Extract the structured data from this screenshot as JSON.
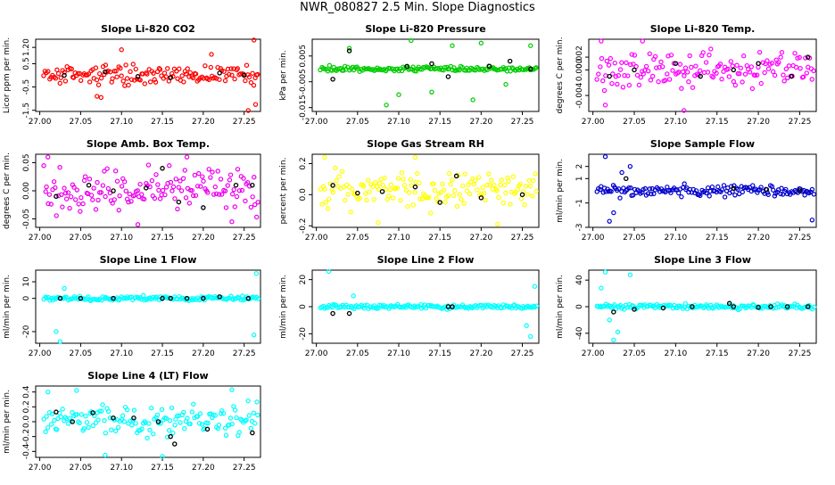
{
  "figure_title": "NWR_080827  2.5 Min. Slope Diagnostics",
  "chart_data": [
    {
      "id": "co2",
      "type": "scatter",
      "title": "Slope Li-820 CO2",
      "ylabel": "Licor ppm per min.",
      "color": "#ff0000",
      "xlim": [
        26.995,
        27.27
      ],
      "ylim": [
        -1.55,
        1.55
      ],
      "xticks": [
        "27.00",
        "27.05",
        "27.10",
        "27.15",
        "27.20",
        "27.25"
      ],
      "yticks": [
        {
          "v": -1.5,
          "label": "-1.5"
        },
        {
          "v": -0.5,
          "label": "-0.5"
        },
        {
          "v": 0.5,
          "label": "0.5"
        },
        {
          "v": 1.2,
          "label": "1.20"
        }
      ],
      "scatter": {
        "center": 0.05,
        "spread": 0.32
      },
      "outliers": [
        [
          27.07,
          -0.9
        ],
        [
          27.075,
          -0.95
        ],
        [
          27.1,
          1.1
        ],
        [
          27.21,
          0.9
        ],
        [
          27.255,
          -1.55
        ],
        [
          27.262,
          1.55
        ],
        [
          27.264,
          -1.25
        ]
      ],
      "black_points": [
        [
          27.03,
          0.0
        ],
        [
          27.08,
          0.15
        ],
        [
          27.12,
          -0.05
        ],
        [
          27.16,
          -0.1
        ],
        [
          27.22,
          0.1
        ],
        [
          27.25,
          0.0
        ]
      ]
    },
    {
      "id": "pressure",
      "type": "scatter",
      "title": "Slope Li-820 Pressure",
      "ylabel": "kPa per min.",
      "color": "#00cc00",
      "xlim": [
        26.995,
        27.27
      ],
      "ylim": [
        -0.0165,
        0.0115
      ],
      "xticks": [
        "27.00",
        "27.05",
        "27.10",
        "27.15",
        "27.20",
        "27.25"
      ],
      "yticks": [
        {
          "v": -0.015,
          "label": "-0.015"
        },
        {
          "v": -0.005,
          "label": "-0.005"
        },
        {
          "v": 0.005,
          "label": "0.005"
        }
      ],
      "scatter": {
        "center": 0.0,
        "spread": 0.0009
      },
      "outliers": [
        [
          27.04,
          0.008
        ],
        [
          27.085,
          -0.014
        ],
        [
          27.1,
          -0.01
        ],
        [
          27.115,
          0.011
        ],
        [
          27.14,
          -0.009
        ],
        [
          27.165,
          0.009
        ],
        [
          27.19,
          -0.012
        ],
        [
          27.2,
          0.01
        ],
        [
          27.23,
          -0.006
        ],
        [
          27.26,
          0.009
        ]
      ],
      "black_points": [
        [
          27.02,
          -0.004
        ],
        [
          27.04,
          0.007
        ],
        [
          27.11,
          0.001
        ],
        [
          27.14,
          0.002
        ],
        [
          27.16,
          -0.003
        ],
        [
          27.21,
          0.001
        ],
        [
          27.235,
          0.003
        ],
        [
          27.26,
          0.0
        ]
      ]
    },
    {
      "id": "temp",
      "type": "scatter",
      "title": "Slope Li-820 Temp.",
      "ylabel": "degrees C per min.",
      "color": "#ff00ff",
      "xlim": [
        26.995,
        27.27
      ],
      "ylim": [
        -0.0065,
        0.0048
      ],
      "xticks": [
        "27.00",
        "27.05",
        "27.10",
        "27.15",
        "27.20",
        "27.25"
      ],
      "yticks": [
        {
          "v": -0.004,
          "label": "-0.004"
        },
        {
          "v": 0.0,
          "label": "0.000"
        },
        {
          "v": 0.002,
          "label": "0.002"
        }
      ],
      "scatter": {
        "center": 0.0,
        "spread": 0.0022
      },
      "outliers": [
        [
          27.01,
          0.0045
        ],
        [
          27.015,
          -0.0055
        ],
        [
          27.06,
          0.0045
        ],
        [
          27.11,
          -0.0065
        ]
      ],
      "black_points": [
        [
          27.02,
          -0.001
        ],
        [
          27.05,
          0.0
        ],
        [
          27.1,
          0.001
        ],
        [
          27.13,
          -0.001
        ],
        [
          27.17,
          0.0
        ],
        [
          27.2,
          0.001
        ],
        [
          27.24,
          -0.001
        ],
        [
          27.26,
          0.002
        ]
      ]
    },
    {
      "id": "ambtemp",
      "type": "scatter",
      "title": "Slope Amb. Box Temp.",
      "ylabel": "degrees C per min.",
      "color": "#ee00ee",
      "xlim": [
        26.995,
        27.27
      ],
      "ylim": [
        -0.065,
        0.065
      ],
      "xticks": [
        "27.00",
        "27.05",
        "27.10",
        "27.15",
        "27.20",
        "27.25"
      ],
      "yticks": [
        {
          "v": -0.05,
          "label": "-0.05"
        },
        {
          "v": 0.0,
          "label": "0.00"
        },
        {
          "v": 0.05,
          "label": "0.05"
        }
      ],
      "scatter": {
        "center": 0.0,
        "spread": 0.03
      },
      "outliers": [
        [
          27.01,
          0.06
        ],
        [
          27.12,
          -0.06
        ],
        [
          27.18,
          0.06
        ],
        [
          27.235,
          -0.055
        ]
      ],
      "black_points": [
        [
          27.02,
          -0.01
        ],
        [
          27.06,
          0.01
        ],
        [
          27.09,
          0.0
        ],
        [
          27.13,
          0.005
        ],
        [
          27.15,
          0.04
        ],
        [
          27.17,
          -0.02
        ],
        [
          27.2,
          -0.03
        ],
        [
          27.24,
          0.01
        ],
        [
          27.26,
          0.01
        ]
      ]
    },
    {
      "id": "rh",
      "type": "scatter",
      "title": "Slope Gas Stream RH",
      "ylabel": "percent per min.",
      "color": "#ffff00",
      "xlim": [
        26.995,
        27.27
      ],
      "ylim": [
        -0.21,
        0.26
      ],
      "xticks": [
        "27.00",
        "27.05",
        "27.10",
        "27.15",
        "27.20",
        "27.25"
      ],
      "yticks": [
        {
          "v": -0.2,
          "label": "-0.2"
        },
        {
          "v": 0.0,
          "label": "0.0"
        },
        {
          "v": 0.2,
          "label": "0.2"
        }
      ],
      "scatter": {
        "center": 0.03,
        "spread": 0.09
      },
      "outliers": [
        [
          27.01,
          0.24
        ],
        [
          27.075,
          -0.18
        ],
        [
          27.12,
          0.24
        ],
        [
          27.22,
          -0.19
        ]
      ],
      "black_points": [
        [
          27.02,
          0.06
        ],
        [
          27.05,
          0.01
        ],
        [
          27.08,
          0.02
        ],
        [
          27.12,
          0.05
        ],
        [
          27.15,
          -0.05
        ],
        [
          27.17,
          0.12
        ],
        [
          27.2,
          -0.02
        ],
        [
          27.25,
          0.0
        ]
      ]
    },
    {
      "id": "sampleflow",
      "type": "scatter",
      "title": "Slope Sample Flow",
      "ylabel": "ml/min per min.",
      "color": "#0000cc",
      "xlim": [
        26.995,
        27.27
      ],
      "ylim": [
        -3.0,
        3.0
      ],
      "xticks": [
        "27.00",
        "27.05",
        "27.10",
        "27.15",
        "27.20",
        "27.25"
      ],
      "yticks": [
        {
          "v": -3,
          "label": "-3"
        },
        {
          "v": -1,
          "label": "-1"
        },
        {
          "v": 1,
          "label": "1"
        },
        {
          "v": 2,
          "label": "2"
        }
      ],
      "scatter": {
        "center": 0.0,
        "spread": 0.4
      },
      "outliers": [
        [
          27.015,
          2.8
        ],
        [
          27.02,
          -2.5
        ],
        [
          27.025,
          -1.8
        ],
        [
          27.035,
          1.5
        ],
        [
          27.045,
          2.0
        ],
        [
          27.265,
          -2.4
        ]
      ],
      "black_points": [
        [
          27.04,
          1.0
        ],
        [
          27.17,
          0.2
        ],
        [
          27.21,
          0.1
        ],
        [
          27.25,
          0.0
        ]
      ]
    },
    {
      "id": "line1",
      "type": "scatter",
      "title": "Slope Line 1 Flow",
      "ylabel": "ml/min per min.",
      "color": "#00ffff",
      "xlim": [
        26.995,
        27.27
      ],
      "ylim": [
        -27,
        17
      ],
      "xticks": [
        "27.00",
        "27.05",
        "27.10",
        "27.15",
        "27.20",
        "27.25"
      ],
      "yticks": [
        {
          "v": -20,
          "label": "-20"
        },
        {
          "v": 0,
          "label": "0"
        },
        {
          "v": 10,
          "label": "10"
        }
      ],
      "scatter": {
        "center": 0.0,
        "spread": 1.2
      },
      "outliers": [
        [
          27.02,
          -20
        ],
        [
          27.025,
          -26
        ],
        [
          27.03,
          6
        ],
        [
          27.262,
          -22
        ],
        [
          27.265,
          15
        ]
      ],
      "black_points": [
        [
          27.025,
          0
        ],
        [
          27.05,
          0
        ],
        [
          27.09,
          0
        ],
        [
          27.15,
          0
        ],
        [
          27.16,
          0
        ],
        [
          27.18,
          0
        ],
        [
          27.2,
          0
        ],
        [
          27.22,
          1
        ],
        [
          27.255,
          0
        ]
      ]
    },
    {
      "id": "line2",
      "type": "scatter",
      "title": "Slope Line 2 Flow",
      "ylabel": "ml/min per min.",
      "color": "#00ffff",
      "xlim": [
        26.995,
        27.27
      ],
      "ylim": [
        -27,
        27
      ],
      "xticks": [
        "27.00",
        "27.05",
        "27.10",
        "27.15",
        "27.20",
        "27.25"
      ],
      "yticks": [
        {
          "v": -20,
          "label": "-20"
        },
        {
          "v": 0,
          "label": "0"
        },
        {
          "v": 20,
          "label": "20"
        }
      ],
      "scatter": {
        "center": 0.0,
        "spread": 1.2
      },
      "outliers": [
        [
          27.015,
          26
        ],
        [
          27.045,
          8
        ],
        [
          27.255,
          -14
        ],
        [
          27.26,
          -22
        ],
        [
          27.265,
          15
        ]
      ],
      "black_points": [
        [
          27.02,
          -5
        ],
        [
          27.04,
          -5
        ],
        [
          27.16,
          0
        ],
        [
          27.165,
          0
        ]
      ]
    },
    {
      "id": "line3",
      "type": "scatter",
      "title": "Slope Line 3 Flow",
      "ylabel": "ml/min per min.",
      "color": "#00ffff",
      "xlim": [
        26.995,
        27.27
      ],
      "ylim": [
        -55,
        55
      ],
      "xticks": [
        "27.00",
        "27.05",
        "27.10",
        "27.15",
        "27.20",
        "27.25"
      ],
      "yticks": [
        {
          "v": -40,
          "label": "-40"
        },
        {
          "v": 0,
          "label": "0"
        },
        {
          "v": 40,
          "label": "40"
        }
      ],
      "scatter": {
        "center": 0.0,
        "spread": 3
      },
      "outliers": [
        [
          27.01,
          28
        ],
        [
          27.015,
          52
        ],
        [
          27.02,
          -20
        ],
        [
          27.025,
          -50
        ],
        [
          27.03,
          -38
        ],
        [
          27.045,
          48
        ]
      ],
      "black_points": [
        [
          27.025,
          -8
        ],
        [
          27.05,
          -4
        ],
        [
          27.085,
          -2
        ],
        [
          27.12,
          0
        ],
        [
          27.165,
          5
        ],
        [
          27.17,
          0
        ],
        [
          27.2,
          -1
        ],
        [
          27.215,
          0
        ],
        [
          27.235,
          0
        ],
        [
          27.26,
          0
        ]
      ]
    },
    {
      "id": "line4",
      "type": "scatter",
      "title": "Slope Line 4 (LT) Flow",
      "ylabel": "ml/min per min.",
      "color": "#00ffff",
      "xlim": [
        26.995,
        27.27
      ],
      "ylim": [
        -0.48,
        0.48
      ],
      "xticks": [
        "27.00",
        "27.05",
        "27.10",
        "27.15",
        "27.20",
        "27.25"
      ],
      "yticks": [
        {
          "v": -0.4,
          "label": "-0.4"
        },
        {
          "v": -0.2,
          "label": "-0.2"
        },
        {
          "v": 0.0,
          "label": "0.0"
        },
        {
          "v": 0.2,
          "label": "0.2"
        },
        {
          "v": 0.4,
          "label": "0.4"
        }
      ],
      "scatter": {
        "center": 0.02,
        "spread": 0.16
      },
      "outliers": [
        [
          27.01,
          0.4
        ],
        [
          27.045,
          0.42
        ],
        [
          27.08,
          -0.45
        ],
        [
          27.15,
          -0.48
        ],
        [
          27.235,
          0.43
        ]
      ],
      "black_points": [
        [
          27.02,
          0.13
        ],
        [
          27.04,
          0.0
        ],
        [
          27.065,
          0.12
        ],
        [
          27.09,
          0.05
        ],
        [
          27.115,
          0.05
        ],
        [
          27.145,
          0.0
        ],
        [
          27.16,
          -0.2
        ],
        [
          27.165,
          -0.3
        ],
        [
          27.205,
          -0.1
        ],
        [
          27.26,
          -0.15
        ]
      ]
    }
  ]
}
